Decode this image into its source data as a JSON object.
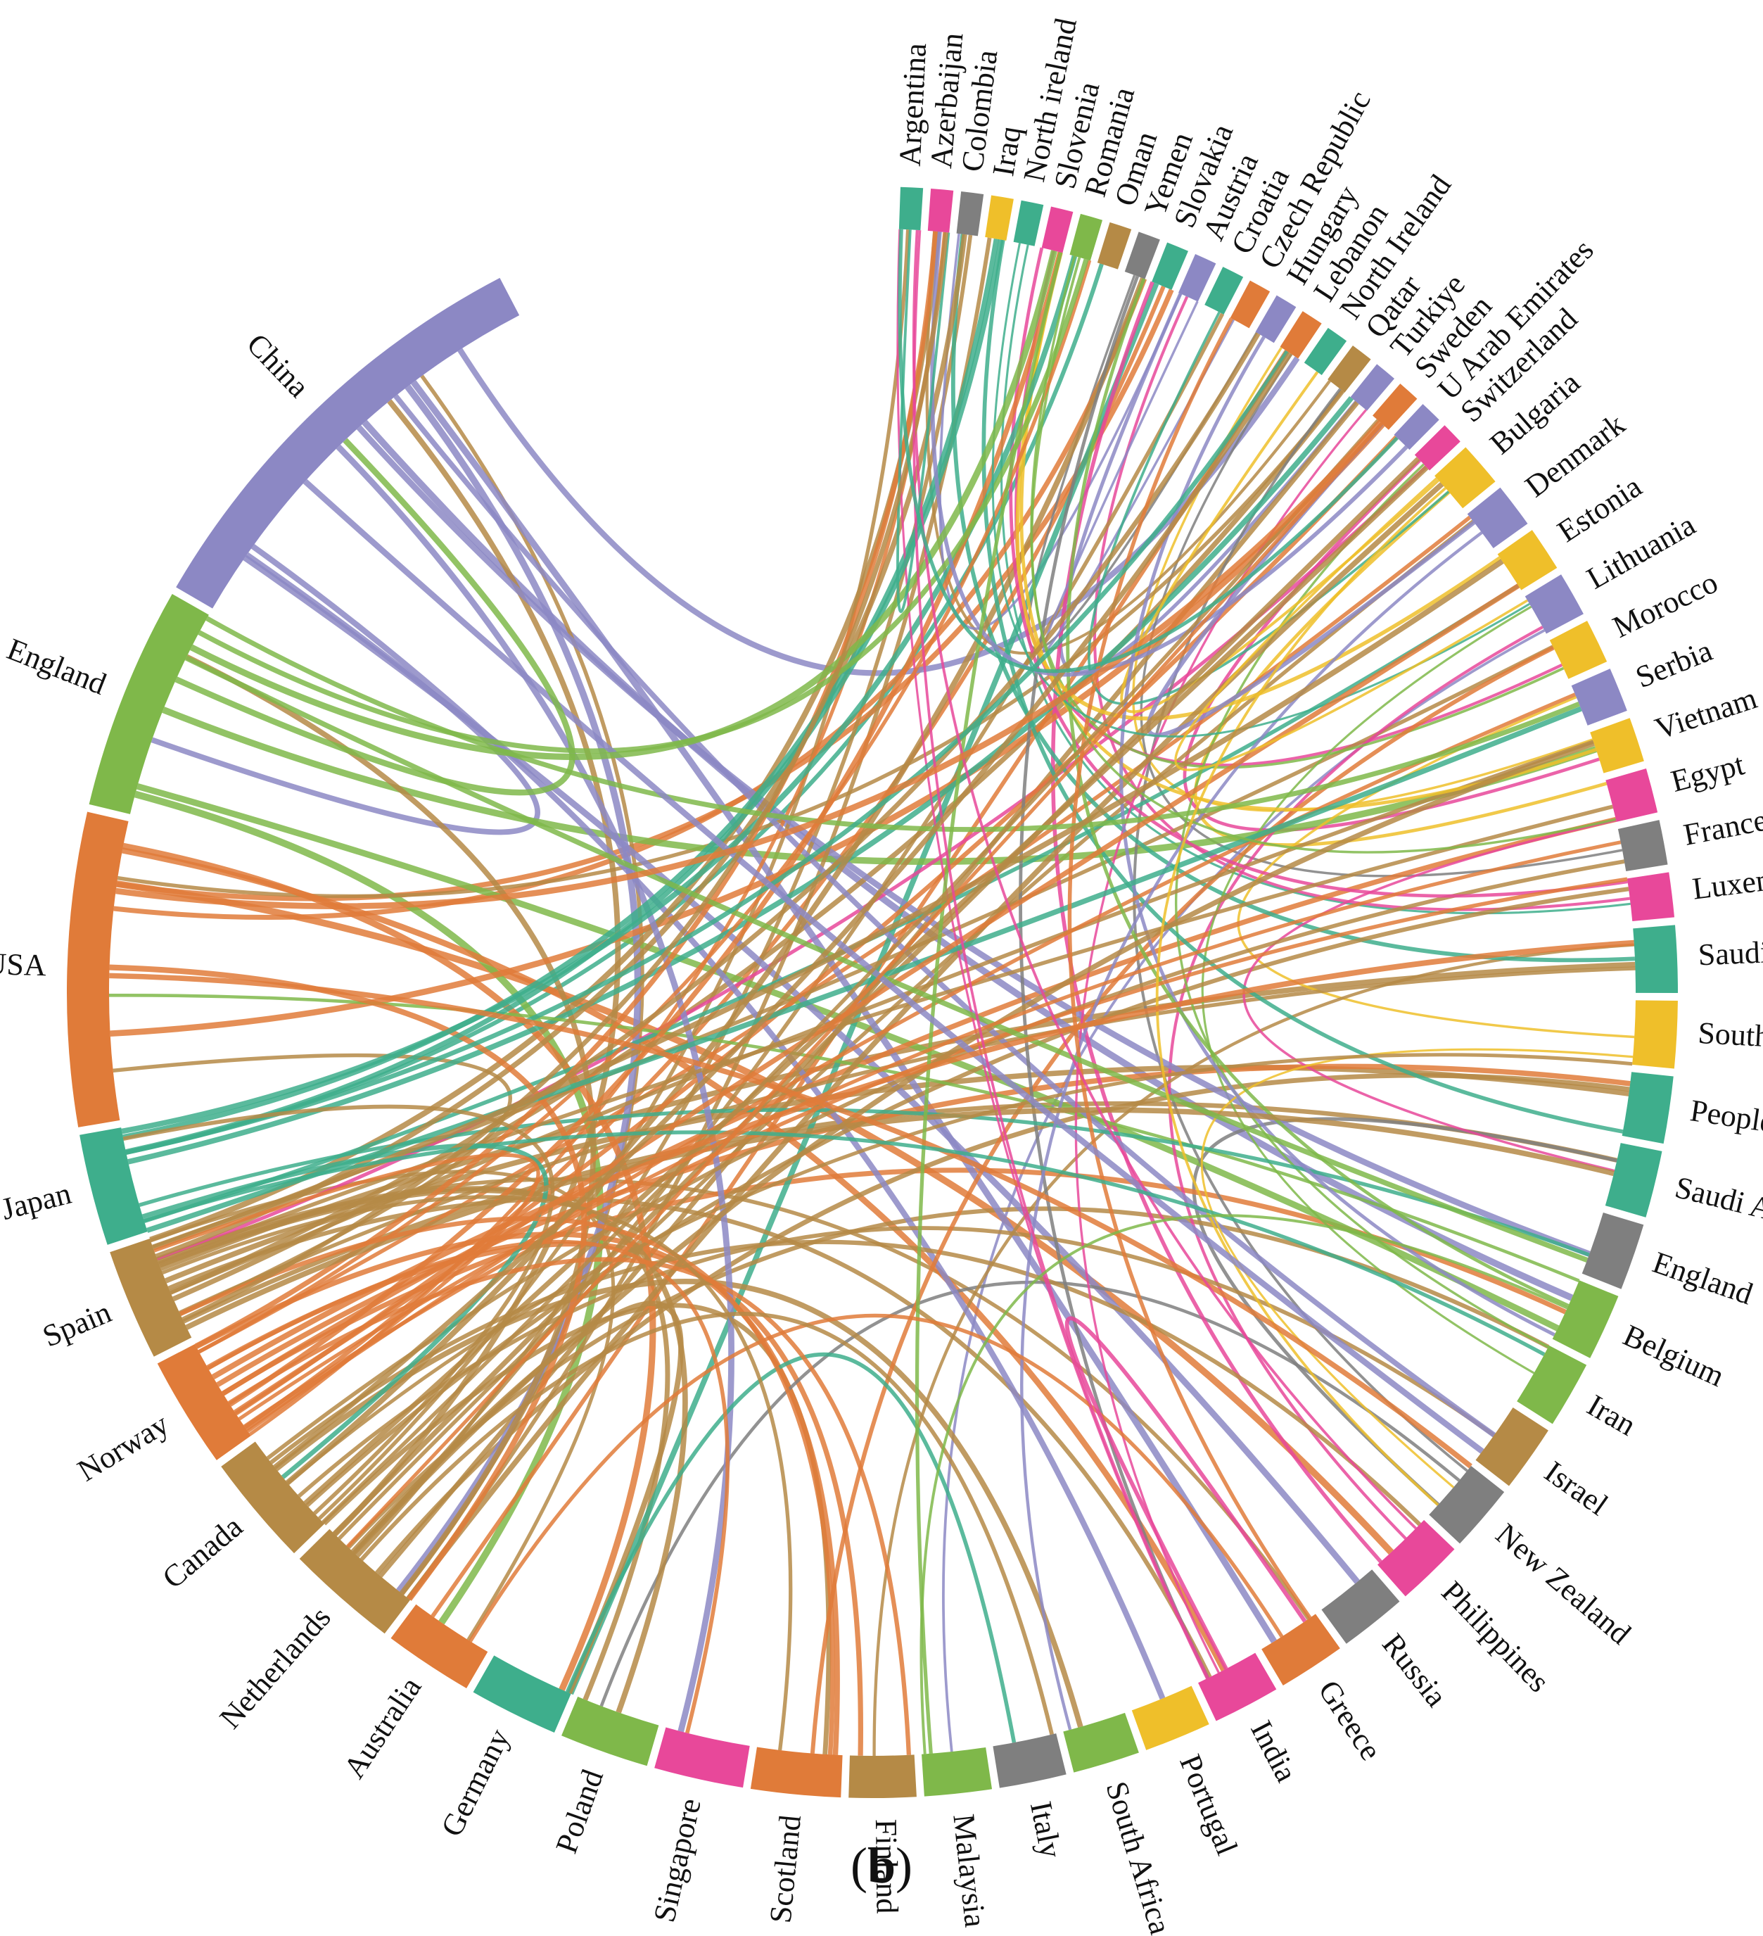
{
  "figure": {
    "caption_open": "(",
    "caption_bold": "b",
    "caption_close": ")"
  },
  "colors": {
    "purple": "#8C88C4",
    "orange": "#E07B39",
    "green": "#7FB84A",
    "teal": "#3EAE8C",
    "pink": "#E8489A",
    "gold": "#B58A46",
    "gray": "#7F7F7F",
    "yellow": "#EFBF2A"
  },
  "chart_data": {
    "type": "chord",
    "title": "",
    "countries": [
      {
        "name": "Argentina",
        "color": "teal",
        "weight": 1
      },
      {
        "name": "Azerbaijan",
        "color": "pink",
        "weight": 1
      },
      {
        "name": "Colombia",
        "color": "gray",
        "weight": 1
      },
      {
        "name": "Iraq",
        "color": "yellow",
        "weight": 1
      },
      {
        "name": "North ireland",
        "color": "teal",
        "weight": 1
      },
      {
        "name": "Slovenia",
        "color": "pink",
        "weight": 1
      },
      {
        "name": "Romania",
        "color": "green",
        "weight": 1
      },
      {
        "name": "Oman",
        "color": "gold",
        "weight": 1
      },
      {
        "name": "Yemen",
        "color": "gray",
        "weight": 1
      },
      {
        "name": "Slovakia",
        "color": "teal",
        "weight": 1
      },
      {
        "name": "Austria",
        "color": "purple",
        "weight": 1
      },
      {
        "name": "Croatia",
        "color": "teal",
        "weight": 1
      },
      {
        "name": "Czech Republic",
        "color": "orange",
        "weight": 1
      },
      {
        "name": "Hungary",
        "color": "purple",
        "weight": 1
      },
      {
        "name": "Lebanon",
        "color": "orange",
        "weight": 1
      },
      {
        "name": "North Ireland",
        "color": "teal",
        "weight": 1
      },
      {
        "name": "Qatar",
        "color": "gold",
        "weight": 1
      },
      {
        "name": "Turkiye",
        "color": "purple",
        "weight": 1
      },
      {
        "name": "Sweden",
        "color": "orange",
        "weight": 1
      },
      {
        "name": "U Arab Emirates",
        "color": "purple",
        "weight": 1
      },
      {
        "name": "Switzerland",
        "color": "pink",
        "weight": 1
      },
      {
        "name": "Bulgaria",
        "color": "yellow",
        "weight": 2
      },
      {
        "name": "Denmark",
        "color": "purple",
        "weight": 2
      },
      {
        "name": "Estonia",
        "color": "yellow",
        "weight": 2
      },
      {
        "name": "Lithuania",
        "color": "purple",
        "weight": 2
      },
      {
        "name": "Morocco",
        "color": "yellow",
        "weight": 2
      },
      {
        "name": "Serbia",
        "color": "purple",
        "weight": 2
      },
      {
        "name": "Vietnam",
        "color": "yellow",
        "weight": 2
      },
      {
        "name": "Egypt",
        "color": "pink",
        "weight": 2
      },
      {
        "name": "France",
        "color": "gray",
        "weight": 2
      },
      {
        "name": "Luxembourg",
        "color": "pink",
        "weight": 2
      },
      {
        "name": "Saudi arabia",
        "color": "teal",
        "weight": 3
      },
      {
        "name": "South Korea",
        "color": "yellow",
        "weight": 3
      },
      {
        "name": "Peoples r china",
        "color": "teal",
        "weight": 3
      },
      {
        "name": "Saudi Arabia",
        "color": "teal",
        "weight": 3
      },
      {
        "name": "England",
        "color": "gray",
        "weight": 3
      },
      {
        "name": "Belgium",
        "color": "green",
        "weight": 3
      },
      {
        "name": "Iran",
        "color": "green",
        "weight": 3
      },
      {
        "name": "Israel",
        "color": "gold",
        "weight": 3
      },
      {
        "name": "New Zealand",
        "color": "gray",
        "weight": 3
      },
      {
        "name": "Philippines",
        "color": "pink",
        "weight": 3
      },
      {
        "name": "Russia",
        "color": "gray",
        "weight": 3
      },
      {
        "name": "Greece",
        "color": "orange",
        "weight": 3
      },
      {
        "name": "India",
        "color": "pink",
        "weight": 3
      },
      {
        "name": "Portugal",
        "color": "yellow",
        "weight": 3
      },
      {
        "name": "South Africa",
        "color": "green",
        "weight": 3
      },
      {
        "name": "Italy",
        "color": "gray",
        "weight": 3
      },
      {
        "name": "Malaysia",
        "color": "green",
        "weight": 3
      },
      {
        "name": "Finland",
        "color": "gold",
        "weight": 3
      },
      {
        "name": "Scotland",
        "color": "orange",
        "weight": 4
      },
      {
        "name": "Singapore",
        "color": "pink",
        "weight": 4
      },
      {
        "name": "Poland",
        "color": "green",
        "weight": 4
      },
      {
        "name": "Germany",
        "color": "teal",
        "weight": 4
      },
      {
        "name": "Australia",
        "color": "orange",
        "weight": 4
      },
      {
        "name": "Netherlands",
        "color": "gold",
        "weight": 5
      },
      {
        "name": "Canada",
        "color": "gold",
        "weight": 5
      },
      {
        "name": "Norway",
        "color": "orange",
        "weight": 5
      },
      {
        "name": "Spain",
        "color": "gold",
        "weight": 5
      },
      {
        "name": "Japan",
        "color": "teal",
        "weight": 5
      },
      {
        "name": "USA",
        "color": "orange",
        "weight": 14
      },
      {
        "name": "England",
        "color": "green",
        "weight": 10
      },
      {
        "name": "China",
        "color": "purple",
        "weight": 20
      }
    ]
  }
}
